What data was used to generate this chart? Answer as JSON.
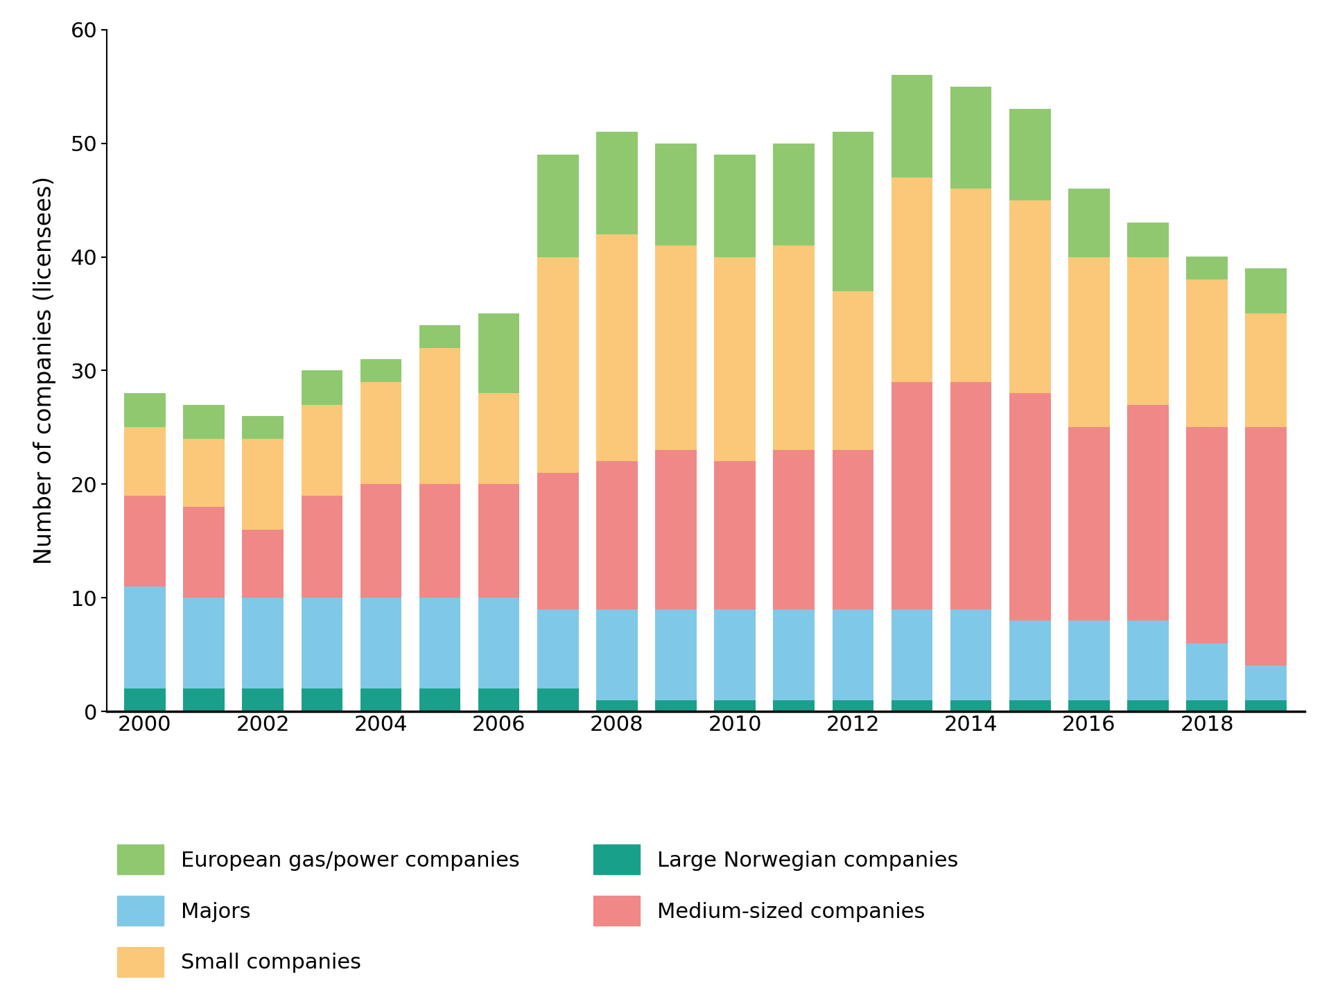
{
  "years": [
    2000,
    2001,
    2002,
    2003,
    2004,
    2005,
    2006,
    2007,
    2008,
    2009,
    2010,
    2011,
    2012,
    2013,
    2014,
    2015,
    2016,
    2017,
    2018,
    2019
  ],
  "large_norwegian": [
    2,
    2,
    2,
    2,
    2,
    2,
    2,
    2,
    1,
    1,
    1,
    1,
    1,
    1,
    1,
    1,
    1,
    1,
    1,
    1
  ],
  "majors": [
    9,
    8,
    8,
    8,
    8,
    8,
    8,
    7,
    8,
    8,
    8,
    8,
    8,
    8,
    8,
    7,
    7,
    7,
    5,
    3
  ],
  "medium_sized": [
    8,
    8,
    6,
    9,
    10,
    10,
    10,
    12,
    13,
    14,
    13,
    14,
    14,
    20,
    20,
    20,
    17,
    19,
    19,
    21
  ],
  "small_companies": [
    6,
    6,
    8,
    8,
    9,
    12,
    8,
    19,
    20,
    18,
    18,
    18,
    14,
    18,
    17,
    17,
    15,
    13,
    13,
    10
  ],
  "european_gas": [
    3,
    3,
    2,
    3,
    2,
    2,
    7,
    9,
    9,
    9,
    9,
    9,
    14,
    9,
    9,
    8,
    6,
    3,
    2,
    4
  ],
  "colors": {
    "large_norwegian": "#19a08a",
    "majors": "#80c8e8",
    "medium_sized": "#f08888",
    "small_companies": "#fac878",
    "european_gas": "#90c870"
  },
  "ylabel": "Number of companies (licensees)",
  "ylim": [
    0,
    60
  ],
  "yticks": [
    0,
    10,
    20,
    30,
    40,
    50,
    60
  ],
  "legend_labels": {
    "european_gas": "European gas/power companies",
    "small_companies": "Small companies",
    "medium_sized": "Medium-sized companies",
    "majors": "Majors",
    "large_norwegian": "Large Norwegian companies"
  }
}
